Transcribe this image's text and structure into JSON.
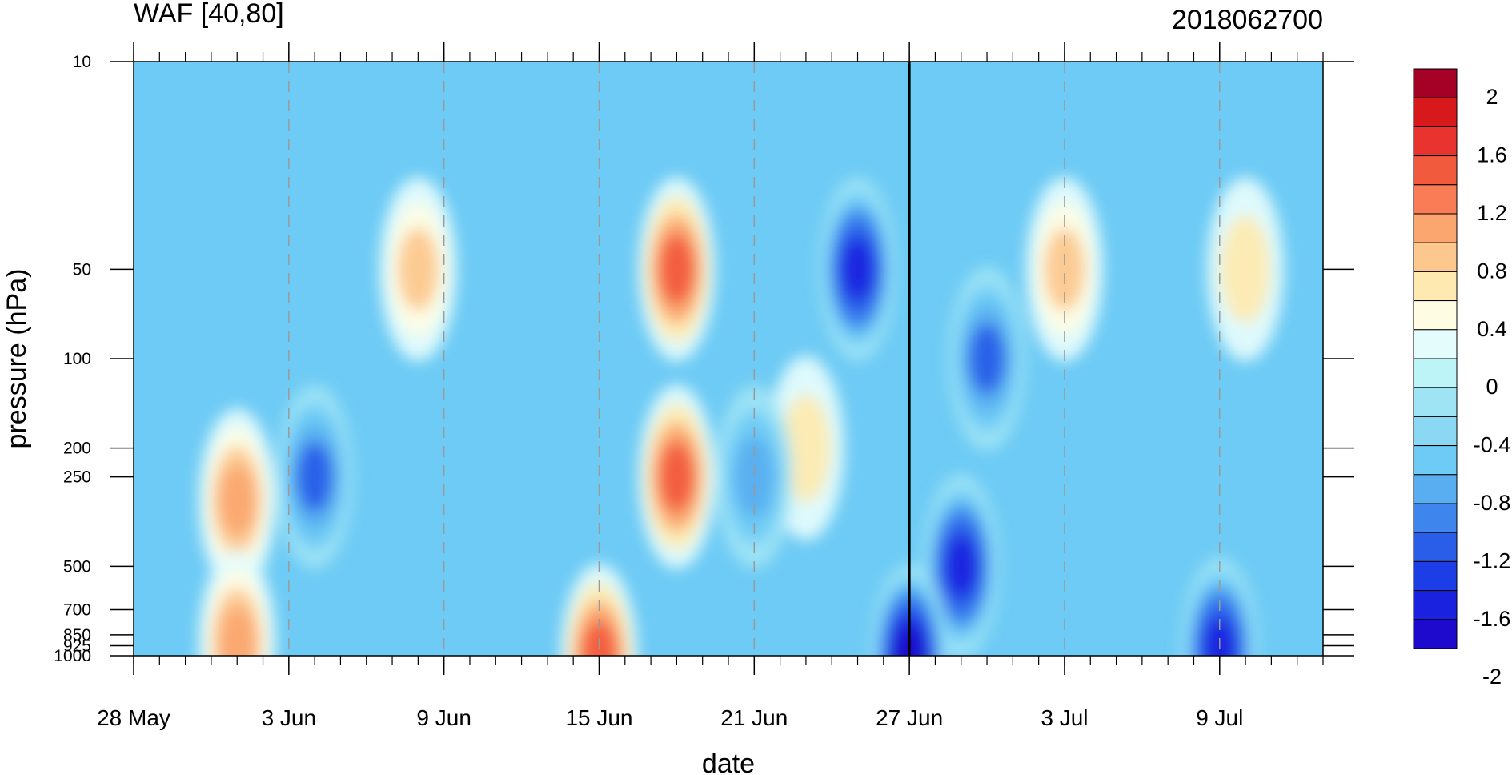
{
  "chart_data": {
    "type": "heatmap",
    "title": "WAF [40,80]",
    "title_right": "2018062700",
    "xlabel": "date",
    "ylabel": "pressure (hPa)",
    "x_axis": {
      "unit": "date",
      "range": [
        "2018-05-28",
        "2018-07-13"
      ],
      "major_tick_labels": [
        "28 May",
        "3 Jun",
        "9 Jun",
        "15 Jun",
        "21 Jun",
        "27 Jun",
        "3 Jul",
        "9 Jul"
      ],
      "major_tick_dates": [
        "2018-05-28",
        "2018-06-03",
        "2018-06-09",
        "2018-06-15",
        "2018-06-21",
        "2018-06-27",
        "2018-07-03",
        "2018-07-09"
      ],
      "minor_tick_interval_days": 1,
      "reference_line_date": "2018-06-27",
      "dashed_gridlines_at_major_ticks": true
    },
    "y_axis": {
      "unit": "hPa",
      "scale": "log",
      "inverted": true,
      "range": [
        1000,
        10
      ],
      "tick_labels": [
        "10",
        "50",
        "100",
        "200",
        "250",
        "500",
        "700",
        "850",
        "925",
        "1000"
      ],
      "tick_values": [
        10,
        50,
        100,
        200,
        250,
        500,
        700,
        850,
        925,
        1000
      ]
    },
    "colorbar": {
      "position": "right",
      "labels": [
        "2",
        "1.6",
        "1.2",
        "0.8",
        "0.4",
        "0",
        "-0.4",
        "-0.8",
        "-1.2",
        "-1.6",
        "-2"
      ],
      "label_values": [
        2,
        1.6,
        1.2,
        0.8,
        0.4,
        0,
        -0.4,
        -0.8,
        -1.2,
        -1.6,
        -2
      ],
      "colors_top_to_bottom": [
        "#a50026",
        "#d7191c",
        "#e8332e",
        "#f25a3e",
        "#f97c56",
        "#fba56f",
        "#fcc88e",
        "#feeab0",
        "#fefde4",
        "#e4fcfc",
        "#bcf4f8",
        "#9ee4f5",
        "#8ad8f4",
        "#6ecbf5",
        "#58aef0",
        "#3e86ee",
        "#2a5ee8",
        "#1d3ee6",
        "#1a22e0",
        "#1e0acc"
      ]
    },
    "field_features": [
      {
        "date": "2018-06-18",
        "pressure": 50,
        "value": 1.4,
        "kind": "maximum"
      },
      {
        "date": "2018-06-18",
        "pressure": 250,
        "value": 1.4,
        "kind": "maximum"
      },
      {
        "date": "2018-06-01",
        "pressure": 300,
        "value": 1.0,
        "kind": "maximum"
      },
      {
        "date": "2018-06-01",
        "pressure": 900,
        "value": 1.0,
        "kind": "maximum"
      },
      {
        "date": "2018-06-08",
        "pressure": 50,
        "value": 0.8,
        "kind": "maximum"
      },
      {
        "date": "2018-06-15",
        "pressure": 1000,
        "value": 1.4,
        "kind": "maximum"
      },
      {
        "date": "2018-06-23",
        "pressure": 200,
        "value": 0.6,
        "kind": "maximum"
      },
      {
        "date": "2018-07-03",
        "pressure": 50,
        "value": 0.8,
        "kind": "maximum"
      },
      {
        "date": "2018-07-10",
        "pressure": 50,
        "value": 0.6,
        "kind": "maximum"
      },
      {
        "date": "2018-06-25",
        "pressure": 50,
        "value": -1.6,
        "kind": "minimum"
      },
      {
        "date": "2018-06-29",
        "pressure": 500,
        "value": -1.6,
        "kind": "minimum"
      },
      {
        "date": "2018-06-27",
        "pressure": 1000,
        "value": -2.0,
        "kind": "minimum"
      },
      {
        "date": "2018-07-09",
        "pressure": 950,
        "value": -1.6,
        "kind": "minimum"
      },
      {
        "date": "2018-06-04",
        "pressure": 250,
        "value": -1.2,
        "kind": "minimum"
      },
      {
        "date": "2018-06-30",
        "pressure": 100,
        "value": -1.2,
        "kind": "minimum"
      },
      {
        "date": "2018-06-21",
        "pressure": 250,
        "value": -0.8,
        "kind": "minimum"
      }
    ]
  }
}
